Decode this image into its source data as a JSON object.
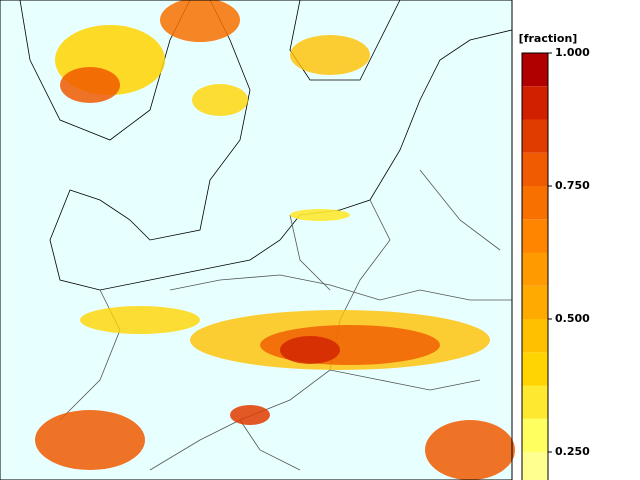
{
  "colorbar": {
    "title": "[fraction]",
    "lim": [
      0.1875,
      1
    ],
    "levels": [
      0.1875,
      0.25,
      0.3125,
      0.375,
      0.4375,
      0.5,
      0.5625,
      0.625,
      0.6875,
      0.75,
      0.8125,
      0.875,
      0.9375
    ],
    "colors": [
      "#ffff90",
      "#ffff60",
      "#ffe830",
      "#ffd400",
      "#ffc000",
      "#ffaa00",
      "#ff9a00",
      "#ff8400",
      "#f87000",
      "#f05a00",
      "#e03c00",
      "#d02000",
      "#b00000"
    ],
    "ticks": [
      {
        "value": 1,
        "label": "1.000"
      },
      {
        "value": 0.75,
        "label": "0.750"
      },
      {
        "value": 0.5,
        "label": "0.500"
      },
      {
        "value": 0.25,
        "label": "0.250"
      }
    ]
  }
}
